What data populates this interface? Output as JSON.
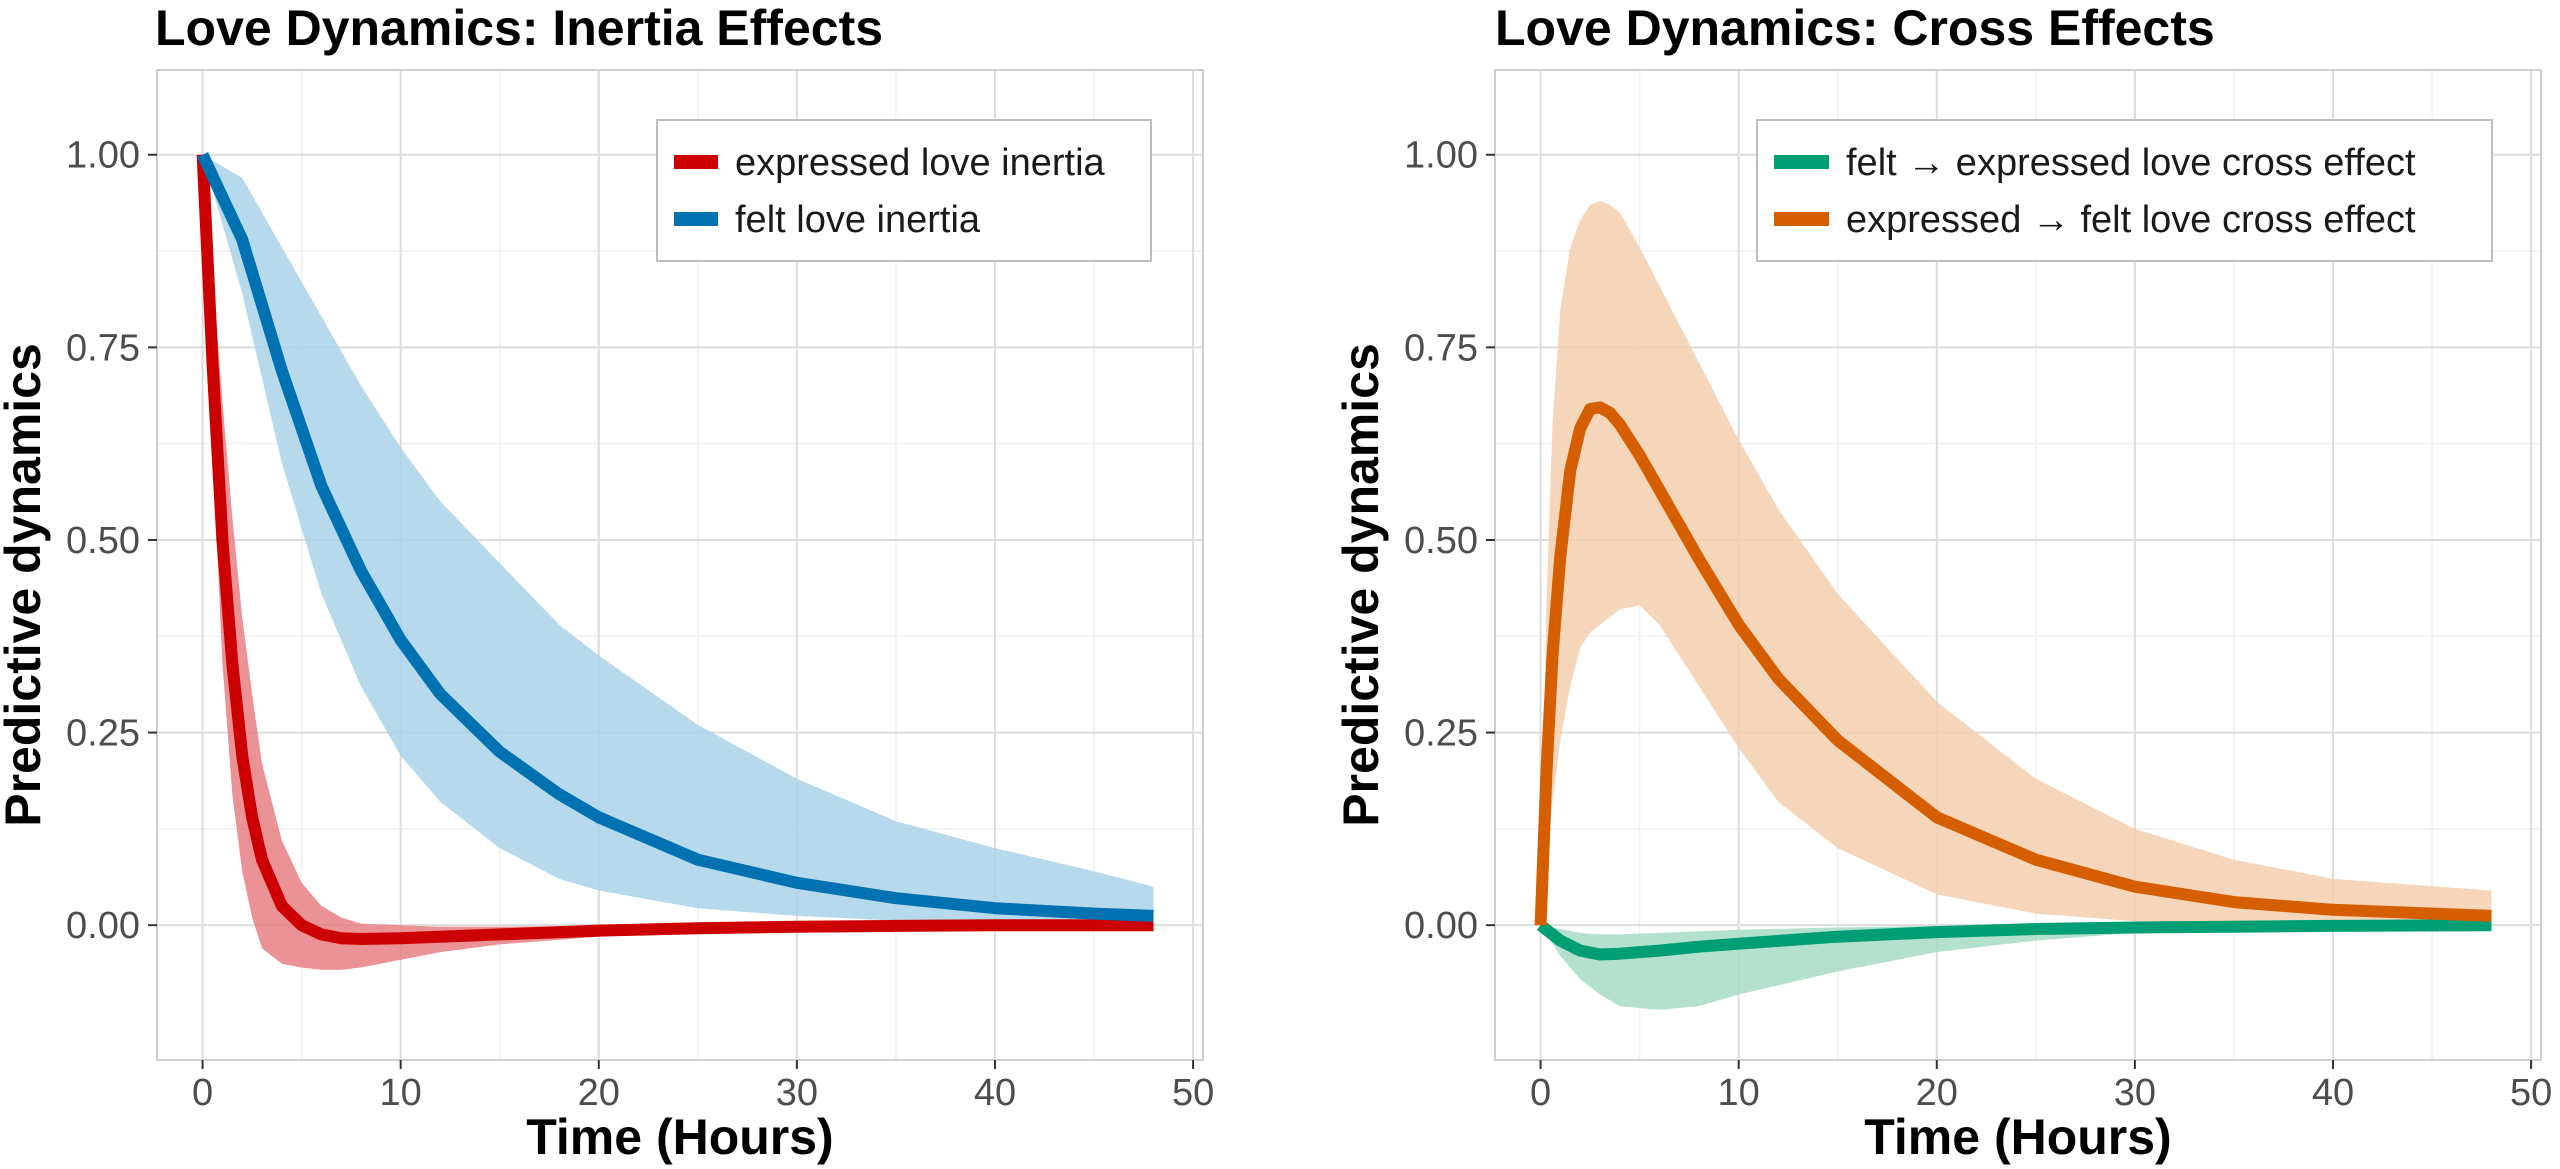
{
  "chart_data": [
    {
      "type": "line",
      "title": "Love Dynamics: Inertia Effects",
      "xlabel": "Time (Hours)",
      "ylabel": "Predictive dynamics",
      "xlim": [
        -2.3,
        50.5
      ],
      "ylim": [
        -0.175,
        1.11
      ],
      "x_ticks": [
        0,
        10,
        20,
        30,
        40,
        50
      ],
      "x_tick_labels": [
        "0",
        "10",
        "20",
        "30",
        "40",
        "50"
      ],
      "y_ticks": [
        0,
        0.25,
        0.5,
        0.75,
        1.0
      ],
      "y_tick_labels": [
        "0.00",
        "0.25",
        "0.50",
        "0.75",
        "1.00"
      ],
      "grid": true,
      "legend_position": "top-right",
      "series": [
        {
          "name": "expressed love inertia",
          "color": "#cc0000",
          "band_color": "#e87f84",
          "x": [
            0,
            0.5,
            1,
            1.5,
            2,
            2.5,
            3,
            4,
            5,
            6,
            7,
            8,
            10,
            12,
            15,
            20,
            25,
            30,
            35,
            40,
            48
          ],
          "values": [
            1.0,
            0.73,
            0.5,
            0.34,
            0.22,
            0.14,
            0.085,
            0.025,
            0.0,
            -0.012,
            -0.017,
            -0.018,
            -0.017,
            -0.015,
            -0.012,
            -0.007,
            -0.004,
            -0.002,
            -0.001,
            0.0,
            0.0
          ],
          "lower": [
            1.0,
            0.62,
            0.34,
            0.17,
            0.07,
            0.01,
            -0.03,
            -0.05,
            -0.055,
            -0.058,
            -0.058,
            -0.055,
            -0.045,
            -0.035,
            -0.025,
            -0.015,
            -0.008,
            -0.004,
            -0.002,
            -0.001,
            0.0
          ],
          "upper": [
            1.0,
            0.85,
            0.68,
            0.53,
            0.4,
            0.3,
            0.21,
            0.11,
            0.055,
            0.025,
            0.01,
            0.002,
            0.0,
            -0.002,
            -0.002,
            -0.001,
            0.0,
            0.0,
            0.0,
            0.0,
            0.0
          ]
        },
        {
          "name": "felt love inertia",
          "color": "#0072b2",
          "band_color": "#a9d2e8",
          "x": [
            0,
            2,
            4,
            6,
            8,
            10,
            12,
            15,
            18,
            20,
            25,
            30,
            35,
            40,
            45,
            48
          ],
          "values": [
            1.0,
            0.89,
            0.72,
            0.57,
            0.46,
            0.37,
            0.3,
            0.225,
            0.17,
            0.14,
            0.085,
            0.055,
            0.035,
            0.022,
            0.015,
            0.012
          ],
          "lower": [
            1.0,
            0.82,
            0.6,
            0.43,
            0.31,
            0.22,
            0.16,
            0.1,
            0.06,
            0.045,
            0.022,
            0.012,
            0.006,
            0.003,
            0.001,
            0.001
          ],
          "upper": [
            1.0,
            0.97,
            0.88,
            0.79,
            0.7,
            0.62,
            0.55,
            0.47,
            0.39,
            0.35,
            0.26,
            0.19,
            0.135,
            0.1,
            0.07,
            0.05
          ]
        }
      ]
    },
    {
      "type": "line",
      "title": "Love Dynamics: Cross Effects",
      "xlabel": "Time (Hours)",
      "ylabel": "Predictive dynamics",
      "xlim": [
        -2.3,
        50.5
      ],
      "ylim": [
        -0.175,
        1.11
      ],
      "x_ticks": [
        0,
        10,
        20,
        30,
        40,
        50
      ],
      "x_tick_labels": [
        "0",
        "10",
        "20",
        "30",
        "40",
        "50"
      ],
      "y_ticks": [
        0,
        0.25,
        0.5,
        0.75,
        1.0
      ],
      "y_tick_labels": [
        "0.00",
        "0.25",
        "0.50",
        "0.75",
        "1.00"
      ],
      "grid": true,
      "legend_position": "top-right",
      "series": [
        {
          "name": "felt → expressed love cross effect",
          "color": "#009e73",
          "band_color": "#a6dcc6",
          "x": [
            0,
            1,
            2,
            3,
            4,
            6,
            8,
            10,
            15,
            20,
            25,
            30,
            35,
            40,
            48
          ],
          "values": [
            0.0,
            -0.02,
            -0.033,
            -0.038,
            -0.037,
            -0.033,
            -0.028,
            -0.024,
            -0.015,
            -0.009,
            -0.005,
            -0.003,
            -0.002,
            -0.001,
            0.0
          ],
          "lower": [
            0.0,
            -0.04,
            -0.07,
            -0.09,
            -0.105,
            -0.11,
            -0.105,
            -0.09,
            -0.06,
            -0.035,
            -0.02,
            -0.01,
            -0.005,
            -0.002,
            0.0
          ],
          "upper": [
            0.0,
            -0.005,
            -0.01,
            -0.012,
            -0.012,
            -0.01,
            -0.008,
            -0.006,
            -0.003,
            -0.001,
            0.0,
            0.0,
            0.0,
            0.0,
            0.0
          ]
        },
        {
          "name": "expressed → felt love cross effect",
          "color": "#d55e00",
          "band_color": "#f4cfae",
          "x": [
            0,
            0.3,
            0.6,
            1,
            1.5,
            2,
            2.5,
            3,
            3.5,
            4,
            5,
            6,
            8,
            10,
            12,
            15,
            20,
            25,
            30,
            35,
            40,
            48
          ],
          "values": [
            0.0,
            0.2,
            0.35,
            0.48,
            0.59,
            0.645,
            0.67,
            0.672,
            0.665,
            0.65,
            0.61,
            0.565,
            0.475,
            0.39,
            0.32,
            0.24,
            0.14,
            0.085,
            0.05,
            0.03,
            0.02,
            0.012
          ],
          "lower": [
            0.0,
            0.08,
            0.16,
            0.24,
            0.31,
            0.36,
            0.38,
            0.39,
            0.4,
            0.41,
            0.415,
            0.39,
            0.31,
            0.23,
            0.16,
            0.1,
            0.04,
            0.015,
            0.005,
            0.002,
            0.001,
            0.0
          ],
          "upper": [
            0.0,
            0.42,
            0.65,
            0.8,
            0.88,
            0.915,
            0.935,
            0.94,
            0.935,
            0.925,
            0.88,
            0.83,
            0.73,
            0.63,
            0.54,
            0.43,
            0.29,
            0.19,
            0.125,
            0.085,
            0.06,
            0.045
          ]
        }
      ]
    }
  ]
}
